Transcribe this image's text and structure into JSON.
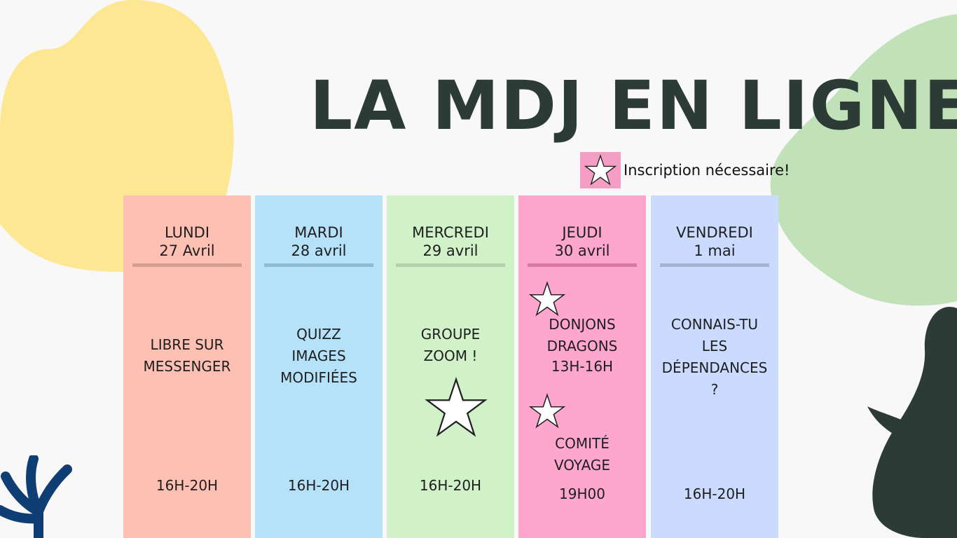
{
  "title": "LA MDJ EN LIGNE",
  "legend": {
    "icon": "star-icon",
    "text": "Inscription nécessaire!"
  },
  "colors": {
    "title": "#2d3b37",
    "lundi": "#fec0b3",
    "mardi": "#b5e2f9",
    "mercredi": "#d1f2c9",
    "jeudi": "#fea6cd",
    "vendredi": "#cadbff"
  },
  "days": [
    {
      "day": "LUNDI",
      "date": "27 Avril",
      "activity": [
        "LIBRE SUR",
        "MESSENGER"
      ],
      "time": "16H-20H"
    },
    {
      "day": "MARDI",
      "date": "28 avril",
      "activity": [
        "QUIZZ",
        "IMAGES",
        "MODIFIÉES"
      ],
      "time": "16H-20H"
    },
    {
      "day": "MERCREDI",
      "date": "29 avril",
      "activity": [
        "GROUPE",
        "ZOOM !"
      ],
      "time": "16H-20H"
    },
    {
      "day": "JEUDI",
      "date": "30 avril",
      "activity": [
        "DONJONS",
        "DRAGONS"
      ],
      "activity_time": "13H-16H",
      "activity2": [
        "COMITÉ",
        "VOYAGE"
      ],
      "time": "19H00"
    },
    {
      "day": "VENDREDI",
      "date": "1 mai",
      "activity": [
        "CONNAIS-TU",
        "LES",
        "DÉPENDANCES",
        "?"
      ],
      "time": "16H-20H"
    }
  ]
}
